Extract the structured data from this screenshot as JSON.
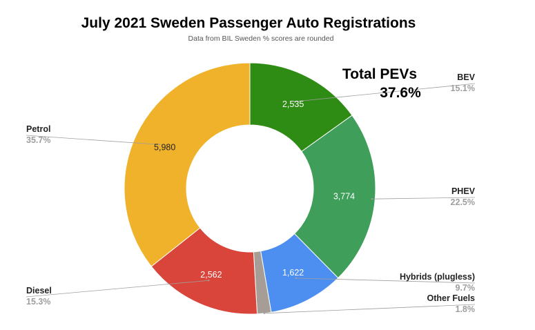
{
  "chart_data": {
    "type": "pie",
    "donut": true,
    "title": "July 2021 Sweden Passenger Auto Registrations",
    "subtitle": "Data from BIL Sweden % scores are rounded",
    "slices": [
      {
        "name": "BEV",
        "value": 2535,
        "value_label": "2,535",
        "pct_label": "15.1%",
        "color": "#2e8b14"
      },
      {
        "name": "PHEV",
        "value": 3774,
        "value_label": "3,774",
        "pct_label": "22.5%",
        "color": "#3f9f5a"
      },
      {
        "name": "Hybrids (plugless)",
        "value": 1622,
        "value_label": "1,622",
        "pct_label": "9.7%",
        "color": "#4c8ff0"
      },
      {
        "name": "Other Fuels",
        "value": 300,
        "value_label": "",
        "pct_label": "1.8%",
        "color": "#a69d97"
      },
      {
        "name": "Diesel",
        "value": 2562,
        "value_label": "2,562",
        "pct_label": "15.3%",
        "color": "#d9453a"
      },
      {
        "name": "Petrol",
        "value": 5980,
        "value_label": "5,980",
        "pct_label": "35.7%",
        "color": "#f0b22a"
      }
    ],
    "annotation": {
      "title": "Total PEVs",
      "value": "37.6%"
    }
  }
}
